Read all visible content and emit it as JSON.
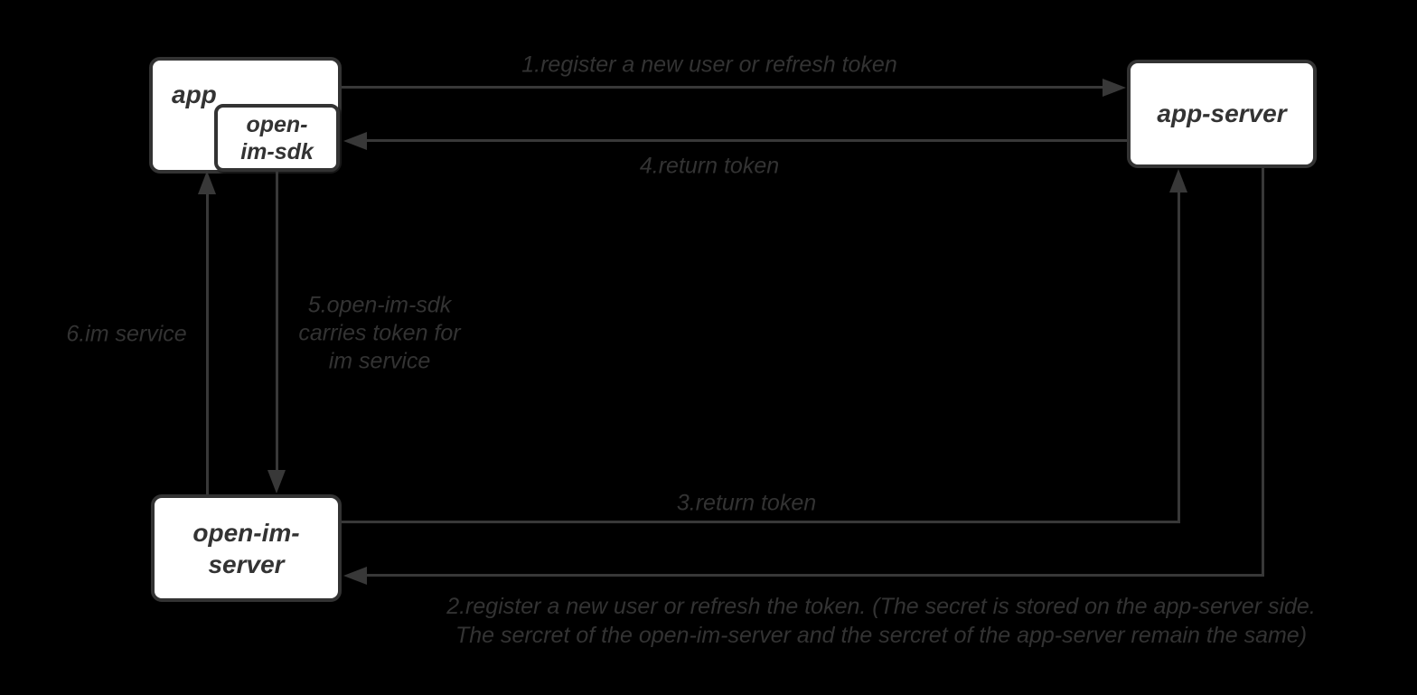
{
  "diagram": {
    "nodes": {
      "app": {
        "label": "app"
      },
      "open_im_sdk": {
        "line1": "open-",
        "line2": "im-sdk"
      },
      "app_server": {
        "label": "app-server"
      },
      "open_im_server": {
        "line1": "open-im-",
        "line2": "server"
      }
    },
    "edges": {
      "e1": {
        "label": "1.register a new user or refresh token",
        "from": "app",
        "to": "app-server"
      },
      "e2": {
        "line1": "2.register a new user or refresh the token. (The secret is stored on the app-server side.",
        "line2": "The sercret of the open-im-server and the sercret of the app-server remain the same)",
        "from": "app-server",
        "to": "open-im-server"
      },
      "e3": {
        "label": "3.return token",
        "from": "open-im-server",
        "to": "app-server"
      },
      "e4": {
        "label": "4.return token",
        "from": "app-server",
        "to": "open-im-sdk"
      },
      "e5": {
        "line1": "5.open-im-sdk",
        "line2": "carries token for",
        "line3": "im service",
        "from": "open-im-sdk",
        "to": "open-im-server"
      },
      "e6": {
        "label": "6.im service",
        "from": "open-im-server",
        "to": "app"
      }
    },
    "colors": {
      "background": "#000000",
      "box_fill": "#ffffff",
      "box_border": "#333333",
      "line": "#383838",
      "text": "#333333"
    }
  }
}
